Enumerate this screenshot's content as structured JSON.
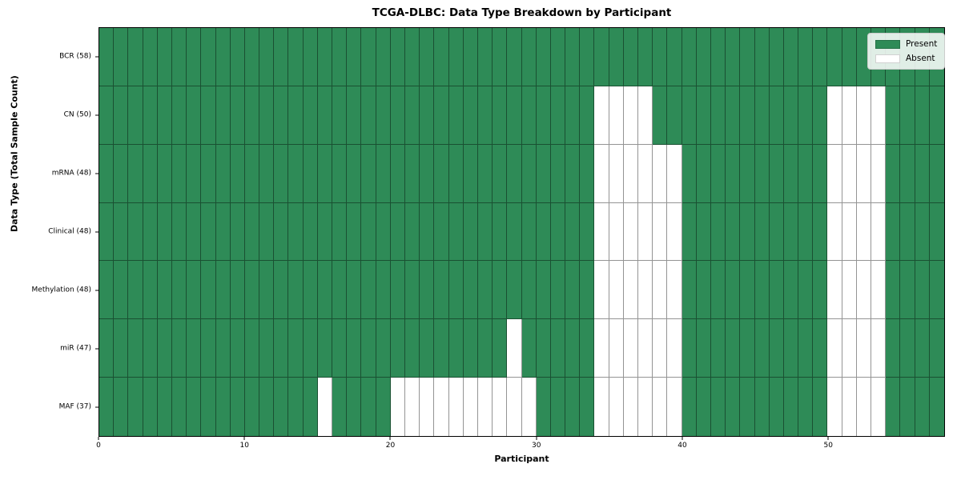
{
  "chart_data": {
    "type": "heatmap",
    "title": "TCGA-DLBC: Data Type Breakdown by Participant",
    "xlabel": "Participant",
    "ylabel": "Data Type (Total Sample Count)",
    "xlim": [
      0,
      58
    ],
    "n_participants": 58,
    "x_ticks": [
      0,
      10,
      20,
      30,
      40,
      50
    ],
    "grid": true,
    "legend_position": "upper right",
    "colors": {
      "present": "#2e8b57",
      "absent": "#ffffff",
      "cell_grid": "rgba(0,0,0,0.42)",
      "plot_border": "#000000"
    },
    "legend": [
      {
        "label": "Present",
        "color": "#2e8b57"
      },
      {
        "label": "Absent",
        "color": "#ffffff"
      }
    ],
    "rows": [
      {
        "label": "BCR (58)",
        "total_sample_count": 58,
        "absent_ranges": []
      },
      {
        "label": "CN (50)",
        "total_sample_count": 50,
        "absent_ranges": [
          [
            34,
            38
          ],
          [
            50,
            54
          ]
        ]
      },
      {
        "label": "mRNA (48)",
        "total_sample_count": 48,
        "absent_ranges": [
          [
            34,
            40
          ],
          [
            50,
            54
          ]
        ]
      },
      {
        "label": "Clinical (48)",
        "total_sample_count": 48,
        "absent_ranges": [
          [
            34,
            40
          ],
          [
            50,
            54
          ]
        ]
      },
      {
        "label": "Methylation (48)",
        "total_sample_count": 48,
        "absent_ranges": [
          [
            34,
            40
          ],
          [
            50,
            54
          ]
        ]
      },
      {
        "label": "miR (47)",
        "total_sample_count": 47,
        "absent_ranges": [
          [
            28,
            29
          ],
          [
            34,
            40
          ],
          [
            50,
            54
          ]
        ]
      },
      {
        "label": "MAF (37)",
        "total_sample_count": 37,
        "absent_ranges": [
          [
            15,
            16
          ],
          [
            20,
            30
          ],
          [
            34,
            40
          ],
          [
            50,
            54
          ]
        ]
      }
    ]
  }
}
